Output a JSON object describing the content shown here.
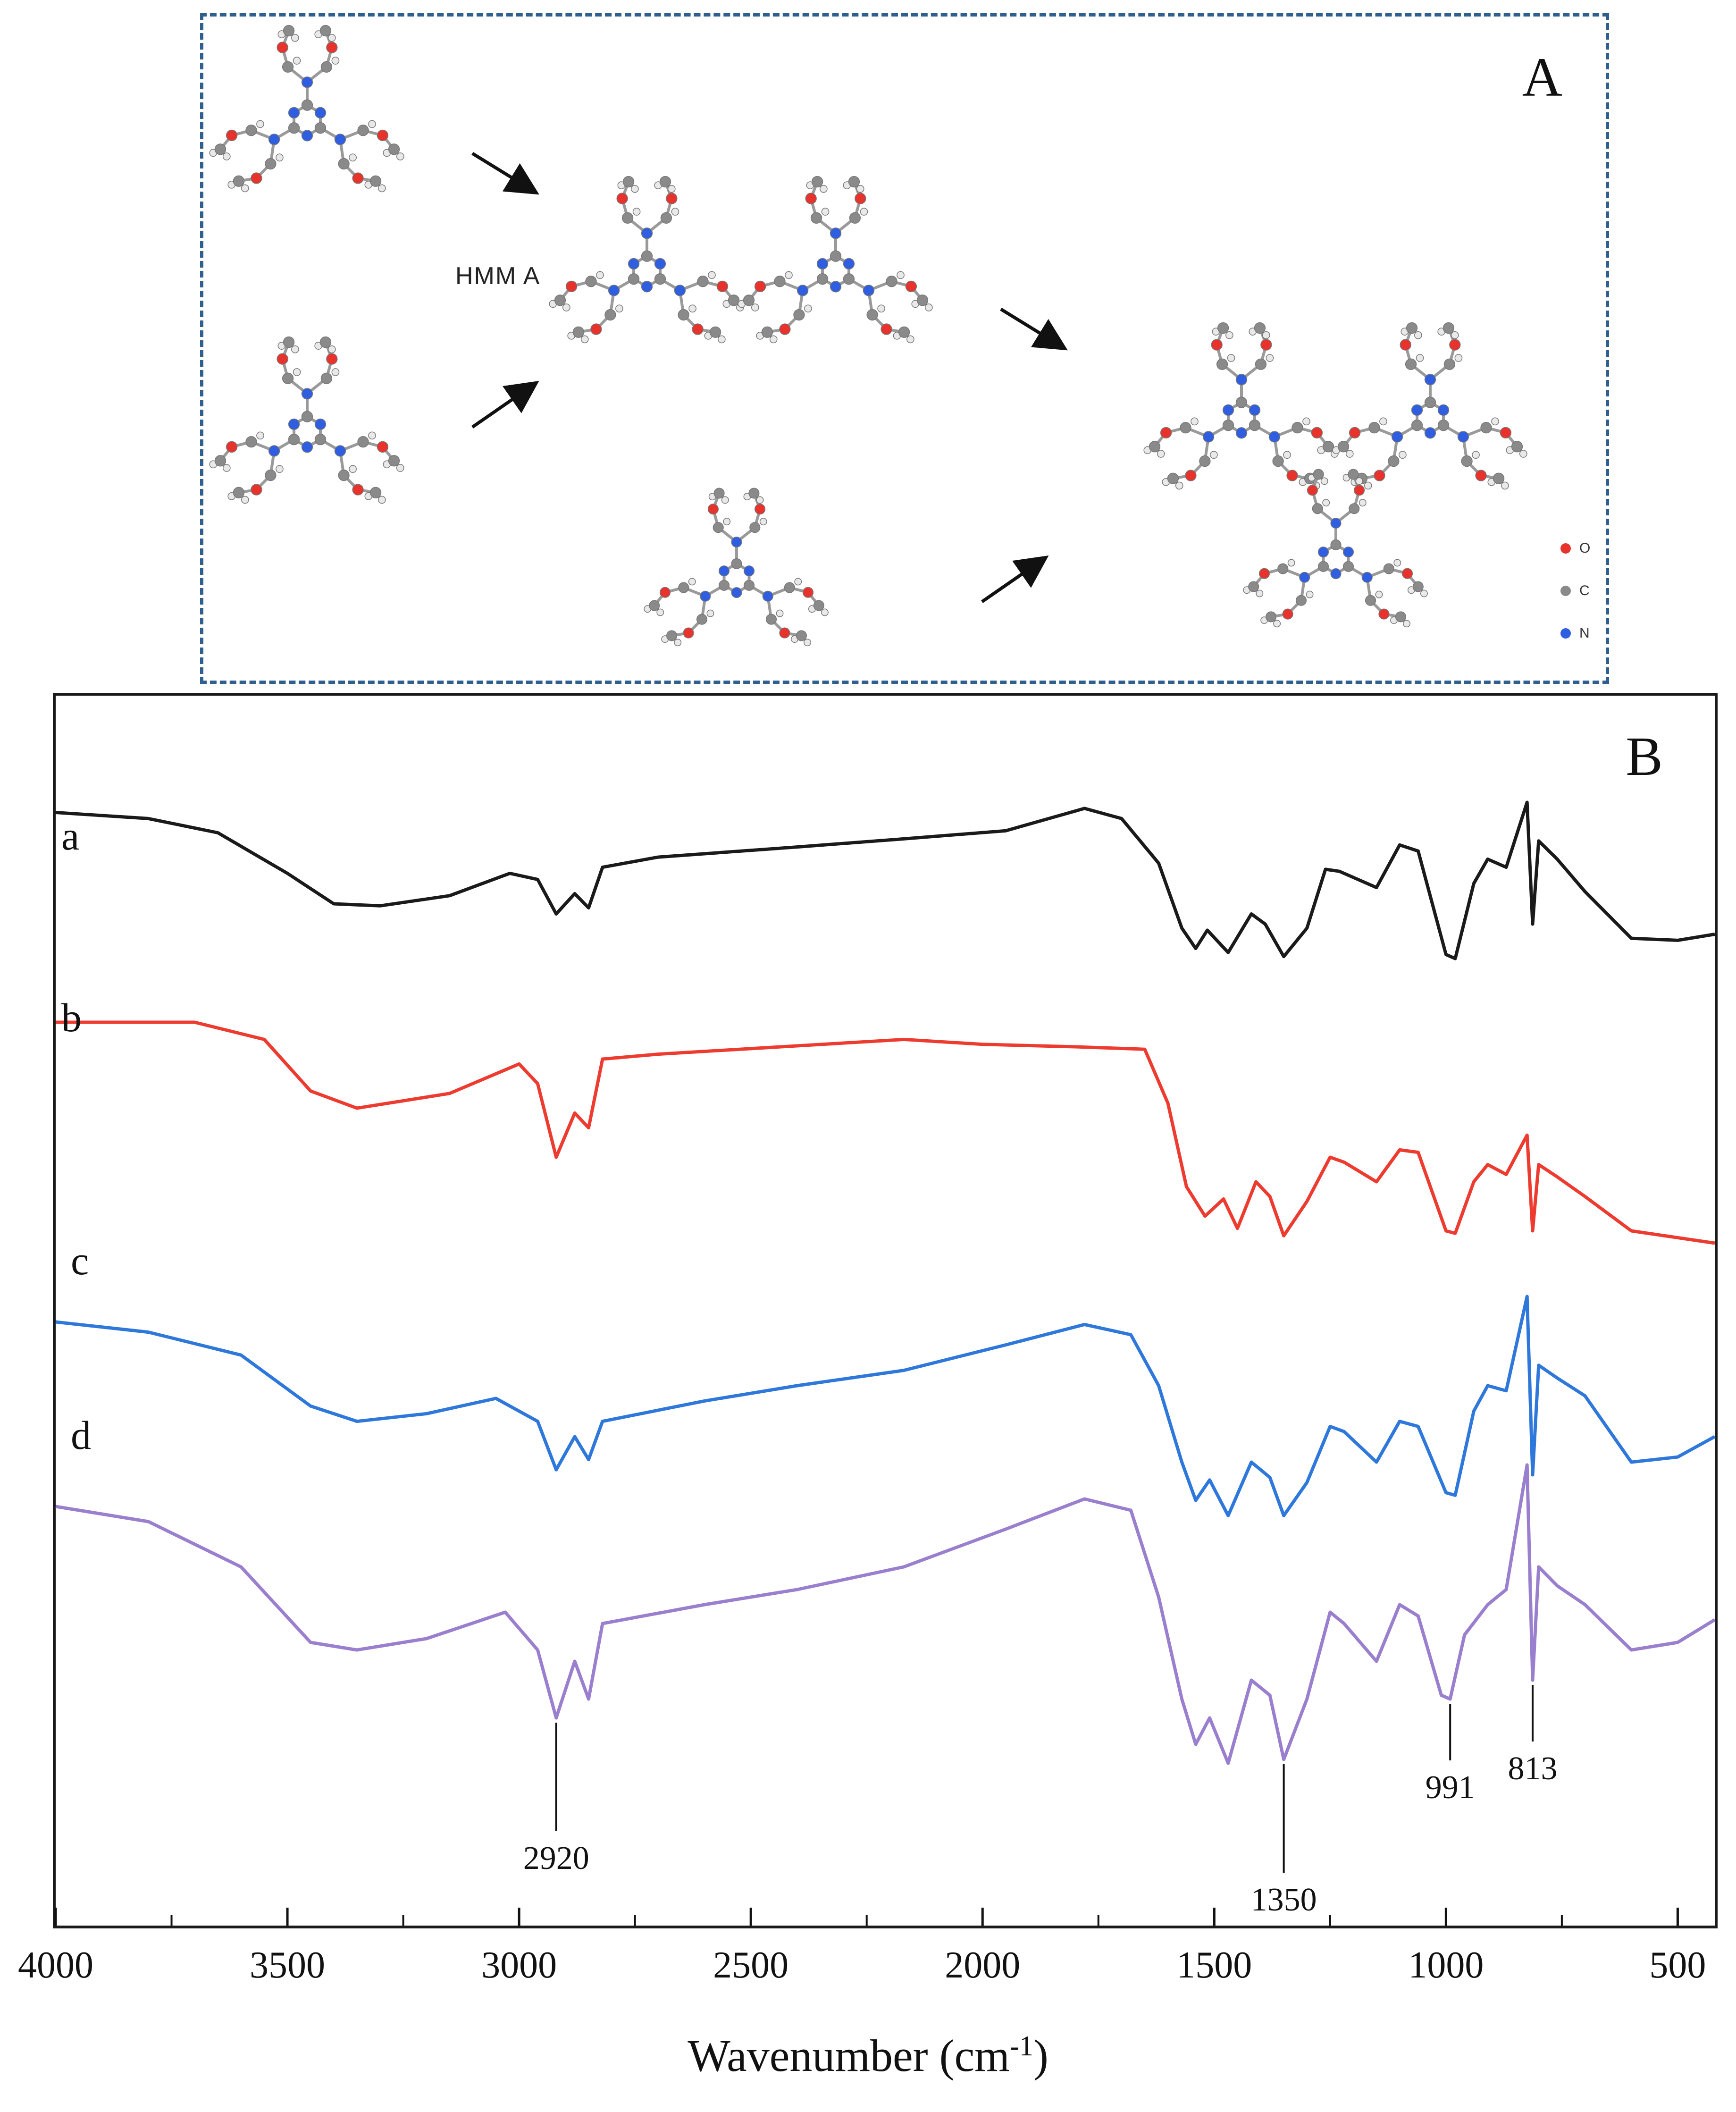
{
  "panel_a": {
    "letter": "A",
    "molecule_label": "HMM A",
    "legend": [
      {
        "label": "O",
        "color": "#e8332d"
      },
      {
        "label": "C",
        "color": "#8a8a8a"
      },
      {
        "label": "N",
        "color": "#2f5fe0"
      }
    ]
  },
  "panel_b": {
    "letter": "B"
  },
  "chart_data": {
    "type": "line",
    "title": "",
    "xlabel": "Wavenumber (cm",
    "xlabel_sup": "-1",
    "xlabel_close": ")",
    "ylabel": "",
    "xlim": [
      4000,
      420
    ],
    "x_ticks": [
      4000,
      3500,
      3000,
      2500,
      2000,
      1500,
      1000,
      500
    ],
    "x_tick_labels": [
      "4000",
      "3500",
      "3000",
      "2500",
      "2000",
      "1500",
      "1000",
      "500"
    ],
    "grid": false,
    "legend": "none",
    "series": [
      {
        "name": "a",
        "color": "#1a1a1a",
        "points": [
          [
            4000,
            0.95
          ],
          [
            3800,
            0.92
          ],
          [
            3650,
            0.85
          ],
          [
            3500,
            0.65
          ],
          [
            3400,
            0.5
          ],
          [
            3300,
            0.49
          ],
          [
            3150,
            0.54
          ],
          [
            3020,
            0.65
          ],
          [
            2960,
            0.62
          ],
          [
            2920,
            0.45
          ],
          [
            2880,
            0.55
          ],
          [
            2850,
            0.48
          ],
          [
            2820,
            0.68
          ],
          [
            2700,
            0.73
          ],
          [
            2400,
            0.78
          ],
          [
            2170,
            0.82
          ],
          [
            1950,
            0.86
          ],
          [
            1780,
            0.97
          ],
          [
            1700,
            0.92
          ],
          [
            1620,
            0.7
          ],
          [
            1570,
            0.38
          ],
          [
            1540,
            0.28
          ],
          [
            1515,
            0.37
          ],
          [
            1470,
            0.26
          ],
          [
            1420,
            0.45
          ],
          [
            1390,
            0.4
          ],
          [
            1350,
            0.24
          ],
          [
            1300,
            0.38
          ],
          [
            1260,
            0.67
          ],
          [
            1230,
            0.66
          ],
          [
            1150,
            0.58
          ],
          [
            1100,
            0.79
          ],
          [
            1060,
            0.76
          ],
          [
            1000,
            0.25
          ],
          [
            980,
            0.23
          ],
          [
            940,
            0.6
          ],
          [
            910,
            0.72
          ],
          [
            870,
            0.68
          ],
          [
            825,
            1.0
          ],
          [
            813,
            0.4
          ],
          [
            800,
            0.81
          ],
          [
            760,
            0.72
          ],
          [
            700,
            0.56
          ],
          [
            600,
            0.33
          ],
          [
            500,
            0.32
          ],
          [
            420,
            0.35
          ]
        ]
      },
      {
        "name": "b",
        "color": "#ee3b30",
        "points": [
          [
            4000,
            0.95
          ],
          [
            3700,
            0.95
          ],
          [
            3550,
            0.88
          ],
          [
            3450,
            0.67
          ],
          [
            3350,
            0.6
          ],
          [
            3150,
            0.66
          ],
          [
            3000,
            0.78
          ],
          [
            2960,
            0.7
          ],
          [
            2920,
            0.4
          ],
          [
            2880,
            0.58
          ],
          [
            2850,
            0.52
          ],
          [
            2820,
            0.8
          ],
          [
            2700,
            0.82
          ],
          [
            2170,
            0.88
          ],
          [
            2000,
            0.86
          ],
          [
            1800,
            0.85
          ],
          [
            1650,
            0.84
          ],
          [
            1600,
            0.62
          ],
          [
            1560,
            0.28
          ],
          [
            1520,
            0.16
          ],
          [
            1480,
            0.23
          ],
          [
            1450,
            0.11
          ],
          [
            1410,
            0.3
          ],
          [
            1380,
            0.24
          ],
          [
            1350,
            0.08
          ],
          [
            1300,
            0.22
          ],
          [
            1250,
            0.4
          ],
          [
            1220,
            0.38
          ],
          [
            1150,
            0.3
          ],
          [
            1100,
            0.43
          ],
          [
            1060,
            0.42
          ],
          [
            1000,
            0.1
          ],
          [
            980,
            0.09
          ],
          [
            940,
            0.3
          ],
          [
            910,
            0.37
          ],
          [
            870,
            0.33
          ],
          [
            825,
            0.49
          ],
          [
            813,
            0.1
          ],
          [
            800,
            0.37
          ],
          [
            760,
            0.32
          ],
          [
            700,
            0.24
          ],
          [
            600,
            0.1
          ],
          [
            420,
            0.05
          ]
        ]
      },
      {
        "name": "c",
        "color": "#2f78db",
        "points": [
          [
            4000,
            0.85
          ],
          [
            3800,
            0.81
          ],
          [
            3600,
            0.72
          ],
          [
            3450,
            0.52
          ],
          [
            3350,
            0.46
          ],
          [
            3200,
            0.49
          ],
          [
            3050,
            0.55
          ],
          [
            2960,
            0.46
          ],
          [
            2920,
            0.27
          ],
          [
            2880,
            0.4
          ],
          [
            2850,
            0.31
          ],
          [
            2820,
            0.46
          ],
          [
            2600,
            0.54
          ],
          [
            2400,
            0.6
          ],
          [
            2170,
            0.66
          ],
          [
            1950,
            0.76
          ],
          [
            1780,
            0.84
          ],
          [
            1680,
            0.8
          ],
          [
            1620,
            0.6
          ],
          [
            1570,
            0.3
          ],
          [
            1540,
            0.15
          ],
          [
            1510,
            0.23
          ],
          [
            1470,
            0.09
          ],
          [
            1420,
            0.3
          ],
          [
            1380,
            0.24
          ],
          [
            1350,
            0.09
          ],
          [
            1300,
            0.22
          ],
          [
            1250,
            0.44
          ],
          [
            1220,
            0.42
          ],
          [
            1150,
            0.3
          ],
          [
            1100,
            0.46
          ],
          [
            1060,
            0.44
          ],
          [
            1000,
            0.18
          ],
          [
            980,
            0.17
          ],
          [
            940,
            0.5
          ],
          [
            910,
            0.6
          ],
          [
            870,
            0.58
          ],
          [
            825,
            0.95
          ],
          [
            813,
            0.25
          ],
          [
            800,
            0.68
          ],
          [
            760,
            0.63
          ],
          [
            700,
            0.56
          ],
          [
            600,
            0.3
          ],
          [
            500,
            0.32
          ],
          [
            420,
            0.4
          ]
        ]
      },
      {
        "name": "d",
        "color": "#9a7fcf",
        "points": [
          [
            4000,
            0.86
          ],
          [
            3800,
            0.82
          ],
          [
            3600,
            0.7
          ],
          [
            3450,
            0.5
          ],
          [
            3350,
            0.48
          ],
          [
            3200,
            0.51
          ],
          [
            3030,
            0.58
          ],
          [
            2960,
            0.48
          ],
          [
            2920,
            0.3
          ],
          [
            2880,
            0.45
          ],
          [
            2850,
            0.35
          ],
          [
            2820,
            0.55
          ],
          [
            2600,
            0.6
          ],
          [
            2400,
            0.64
          ],
          [
            2170,
            0.7
          ],
          [
            1950,
            0.8
          ],
          [
            1780,
            0.88
          ],
          [
            1680,
            0.85
          ],
          [
            1620,
            0.62
          ],
          [
            1570,
            0.35
          ],
          [
            1540,
            0.23
          ],
          [
            1510,
            0.3
          ],
          [
            1470,
            0.18
          ],
          [
            1420,
            0.4
          ],
          [
            1380,
            0.36
          ],
          [
            1350,
            0.19
          ],
          [
            1300,
            0.35
          ],
          [
            1250,
            0.58
          ],
          [
            1220,
            0.55
          ],
          [
            1150,
            0.45
          ],
          [
            1100,
            0.6
          ],
          [
            1060,
            0.57
          ],
          [
            1010,
            0.36
          ],
          [
            991,
            0.35
          ],
          [
            960,
            0.52
          ],
          [
            910,
            0.6
          ],
          [
            870,
            0.64
          ],
          [
            825,
            0.97
          ],
          [
            813,
            0.4
          ],
          [
            800,
            0.7
          ],
          [
            760,
            0.65
          ],
          [
            700,
            0.6
          ],
          [
            600,
            0.48
          ],
          [
            500,
            0.5
          ],
          [
            420,
            0.56
          ]
        ]
      }
    ],
    "annotations": [
      {
        "text": "2920",
        "x": 2920,
        "series": "d"
      },
      {
        "text": "1350",
        "x": 1350,
        "series": "d"
      },
      {
        "text": "991",
        "x": 991,
        "series": "d"
      },
      {
        "text": "813",
        "x": 813,
        "series": "d"
      }
    ]
  }
}
